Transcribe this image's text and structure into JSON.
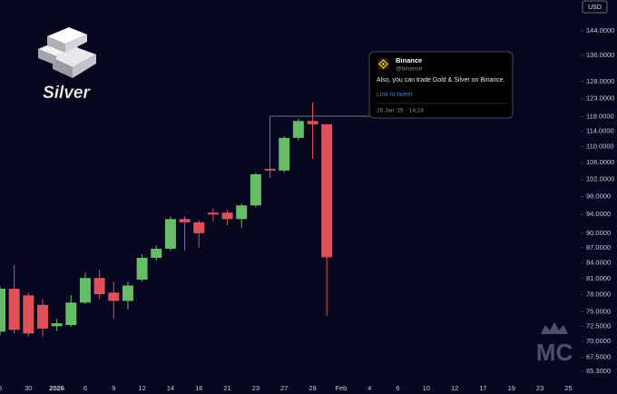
{
  "chart_data": {
    "type": "candlestick",
    "logo_text": "Silver",
    "currency": "USD",
    "watermark": "MC",
    "log_scale": true,
    "up_color": "#67bd67",
    "down_color": "#e0505a",
    "categories": [
      "5",
      null,
      "30",
      null,
      "2026",
      null,
      "6",
      null,
      "9",
      null,
      "12",
      null,
      "14",
      null,
      "16",
      null,
      "21",
      null,
      "23",
      null,
      "27",
      null,
      "29",
      null,
      "Feb",
      null,
      "4",
      null,
      "6",
      null,
      "10",
      null,
      "12",
      null,
      "17",
      null,
      "19",
      null,
      "23",
      null,
      "25"
    ],
    "open": [
      71.6,
      79.1,
      77.9,
      76.2,
      72.5,
      72.7,
      76.6,
      81.1,
      78.4,
      76.9,
      80.8,
      85.0,
      86.8,
      93.0,
      92.3,
      94.4,
      94.4,
      93.0,
      96.0,
      104.5,
      104.1,
      112.3,
      116.8,
      115.9,
      null,
      null,
      null,
      null,
      null,
      null,
      null,
      null,
      null,
      null,
      null,
      null,
      null,
      null,
      null,
      null,
      null
    ],
    "high": [
      79.5,
      83.6,
      78.4,
      77.2,
      73.8,
      77.9,
      82.1,
      82.6,
      80.4,
      80.4,
      85.7,
      87.5,
      93.6,
      93.6,
      92.8,
      95.3,
      95.1,
      96.4,
      103.6,
      118.1,
      112.8,
      117.4,
      121.9,
      116.0,
      null,
      null,
      null,
      null,
      null,
      null,
      null,
      null,
      null,
      null,
      null,
      null,
      null,
      null,
      null,
      null,
      null
    ],
    "low": [
      71.0,
      71.3,
      70.8,
      70.8,
      71.7,
      72.4,
      76.3,
      77.2,
      73.8,
      75.4,
      80.4,
      84.5,
      86.4,
      86.4,
      87.0,
      92.5,
      91.7,
      91.1,
      95.6,
      102.3,
      103.6,
      111.6,
      107.0,
      74.3,
      null,
      null,
      null,
      null,
      null,
      null,
      null,
      null,
      null,
      null,
      null,
      null,
      null,
      null,
      null,
      null,
      null
    ],
    "close": [
      79.1,
      71.9,
      71.3,
      72.1,
      73.0,
      76.6,
      81.1,
      78.1,
      76.9,
      79.7,
      85.0,
      86.8,
      93.0,
      92.3,
      90.0,
      94.0,
      93.0,
      96.0,
      103.2,
      104.1,
      112.3,
      116.8,
      115.9,
      85.1,
      null,
      null,
      null,
      null,
      null,
      null,
      null,
      null,
      null,
      null,
      null,
      null,
      null,
      null,
      null,
      null,
      null
    ],
    "ylim": [
      63.8,
      154.7
    ],
    "yticks": [
      {
        "value": 65.3,
        "label": "65.3000"
      },
      {
        "value": 67.5,
        "label": "67.5000"
      },
      {
        "value": 70,
        "label": "70.0000"
      },
      {
        "value": 72.5,
        "label": "72.5000"
      },
      {
        "value": 75,
        "label": "75.0000"
      },
      {
        "value": 78,
        "label": "78.0000"
      },
      {
        "value": 81,
        "label": "81.0000"
      },
      {
        "value": 84,
        "label": "84.0000"
      },
      {
        "value": 87,
        "label": "87.0000"
      },
      {
        "value": 90,
        "label": "90.0000"
      },
      {
        "value": 94,
        "label": "94.0000"
      },
      {
        "value": 98,
        "label": "98.0000"
      },
      {
        "value": 102,
        "label": "102.0000"
      },
      {
        "value": 106,
        "label": "106.0000"
      },
      {
        "value": 110,
        "label": "110.0000"
      },
      {
        "value": 114,
        "label": "114.0000"
      },
      {
        "value": 118,
        "label": "118.0000"
      },
      {
        "value": 123,
        "label": "123.0000"
      },
      {
        "value": 128,
        "label": "128.0000"
      },
      {
        "value": 136,
        "label": "136.0000"
      },
      {
        "value": 144,
        "label": "144.0000"
      }
    ],
    "annotation": {
      "author": "Binance",
      "handle": "@binance",
      "text": "Also, you can trade Gold & Silver on Binance.",
      "link": "Link to tweet",
      "time": "26 Jan '26 · 14:24"
    }
  }
}
